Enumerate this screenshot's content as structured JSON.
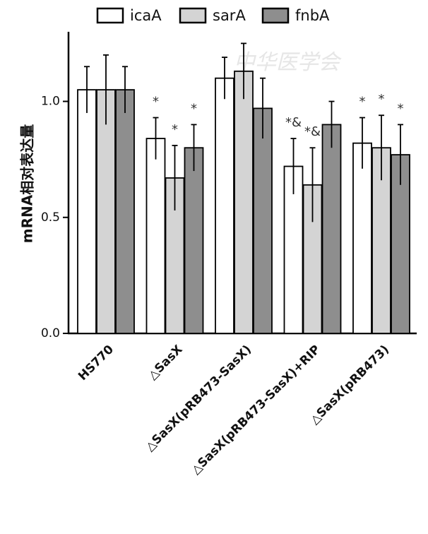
{
  "chart_data": {
    "type": "bar",
    "ylabel": "mRNA相对表达量",
    "watermark": "中华医学会",
    "categories": [
      "HS770",
      "△SasX",
      "△SasX(pRB473-SasX)",
      "△SasX(pRB473-SasX)+RIP",
      "△SasX(pRB473)"
    ],
    "series": [
      {
        "name": "icaA",
        "color": "#ffffff",
        "values": [
          1.05,
          0.84,
          1.1,
          0.72,
          0.82
        ],
        "errors": [
          0.1,
          0.09,
          0.09,
          0.12,
          0.11
        ],
        "annotations": [
          null,
          "*",
          null,
          "*&",
          "*"
        ]
      },
      {
        "name": "sarA",
        "color": "#d4d4d4",
        "values": [
          1.05,
          0.67,
          1.13,
          0.64,
          0.8
        ],
        "errors": [
          0.15,
          0.14,
          0.12,
          0.16,
          0.14
        ],
        "annotations": [
          null,
          "*",
          null,
          "*&",
          "*"
        ]
      },
      {
        "name": "fnbA",
        "color": "#8e8e8e",
        "values": [
          1.05,
          0.8,
          0.97,
          0.9,
          0.77
        ],
        "errors": [
          0.1,
          0.1,
          0.13,
          0.1,
          0.13
        ],
        "annotations": [
          null,
          "*",
          null,
          null,
          "*"
        ]
      }
    ],
    "ylim": [
      0,
      1.3
    ],
    "yticks": [
      {
        "value": 0,
        "label": "0.0"
      },
      {
        "value": 0.5,
        "label": "0.5"
      },
      {
        "value": 1,
        "label": "1.0"
      }
    ]
  }
}
